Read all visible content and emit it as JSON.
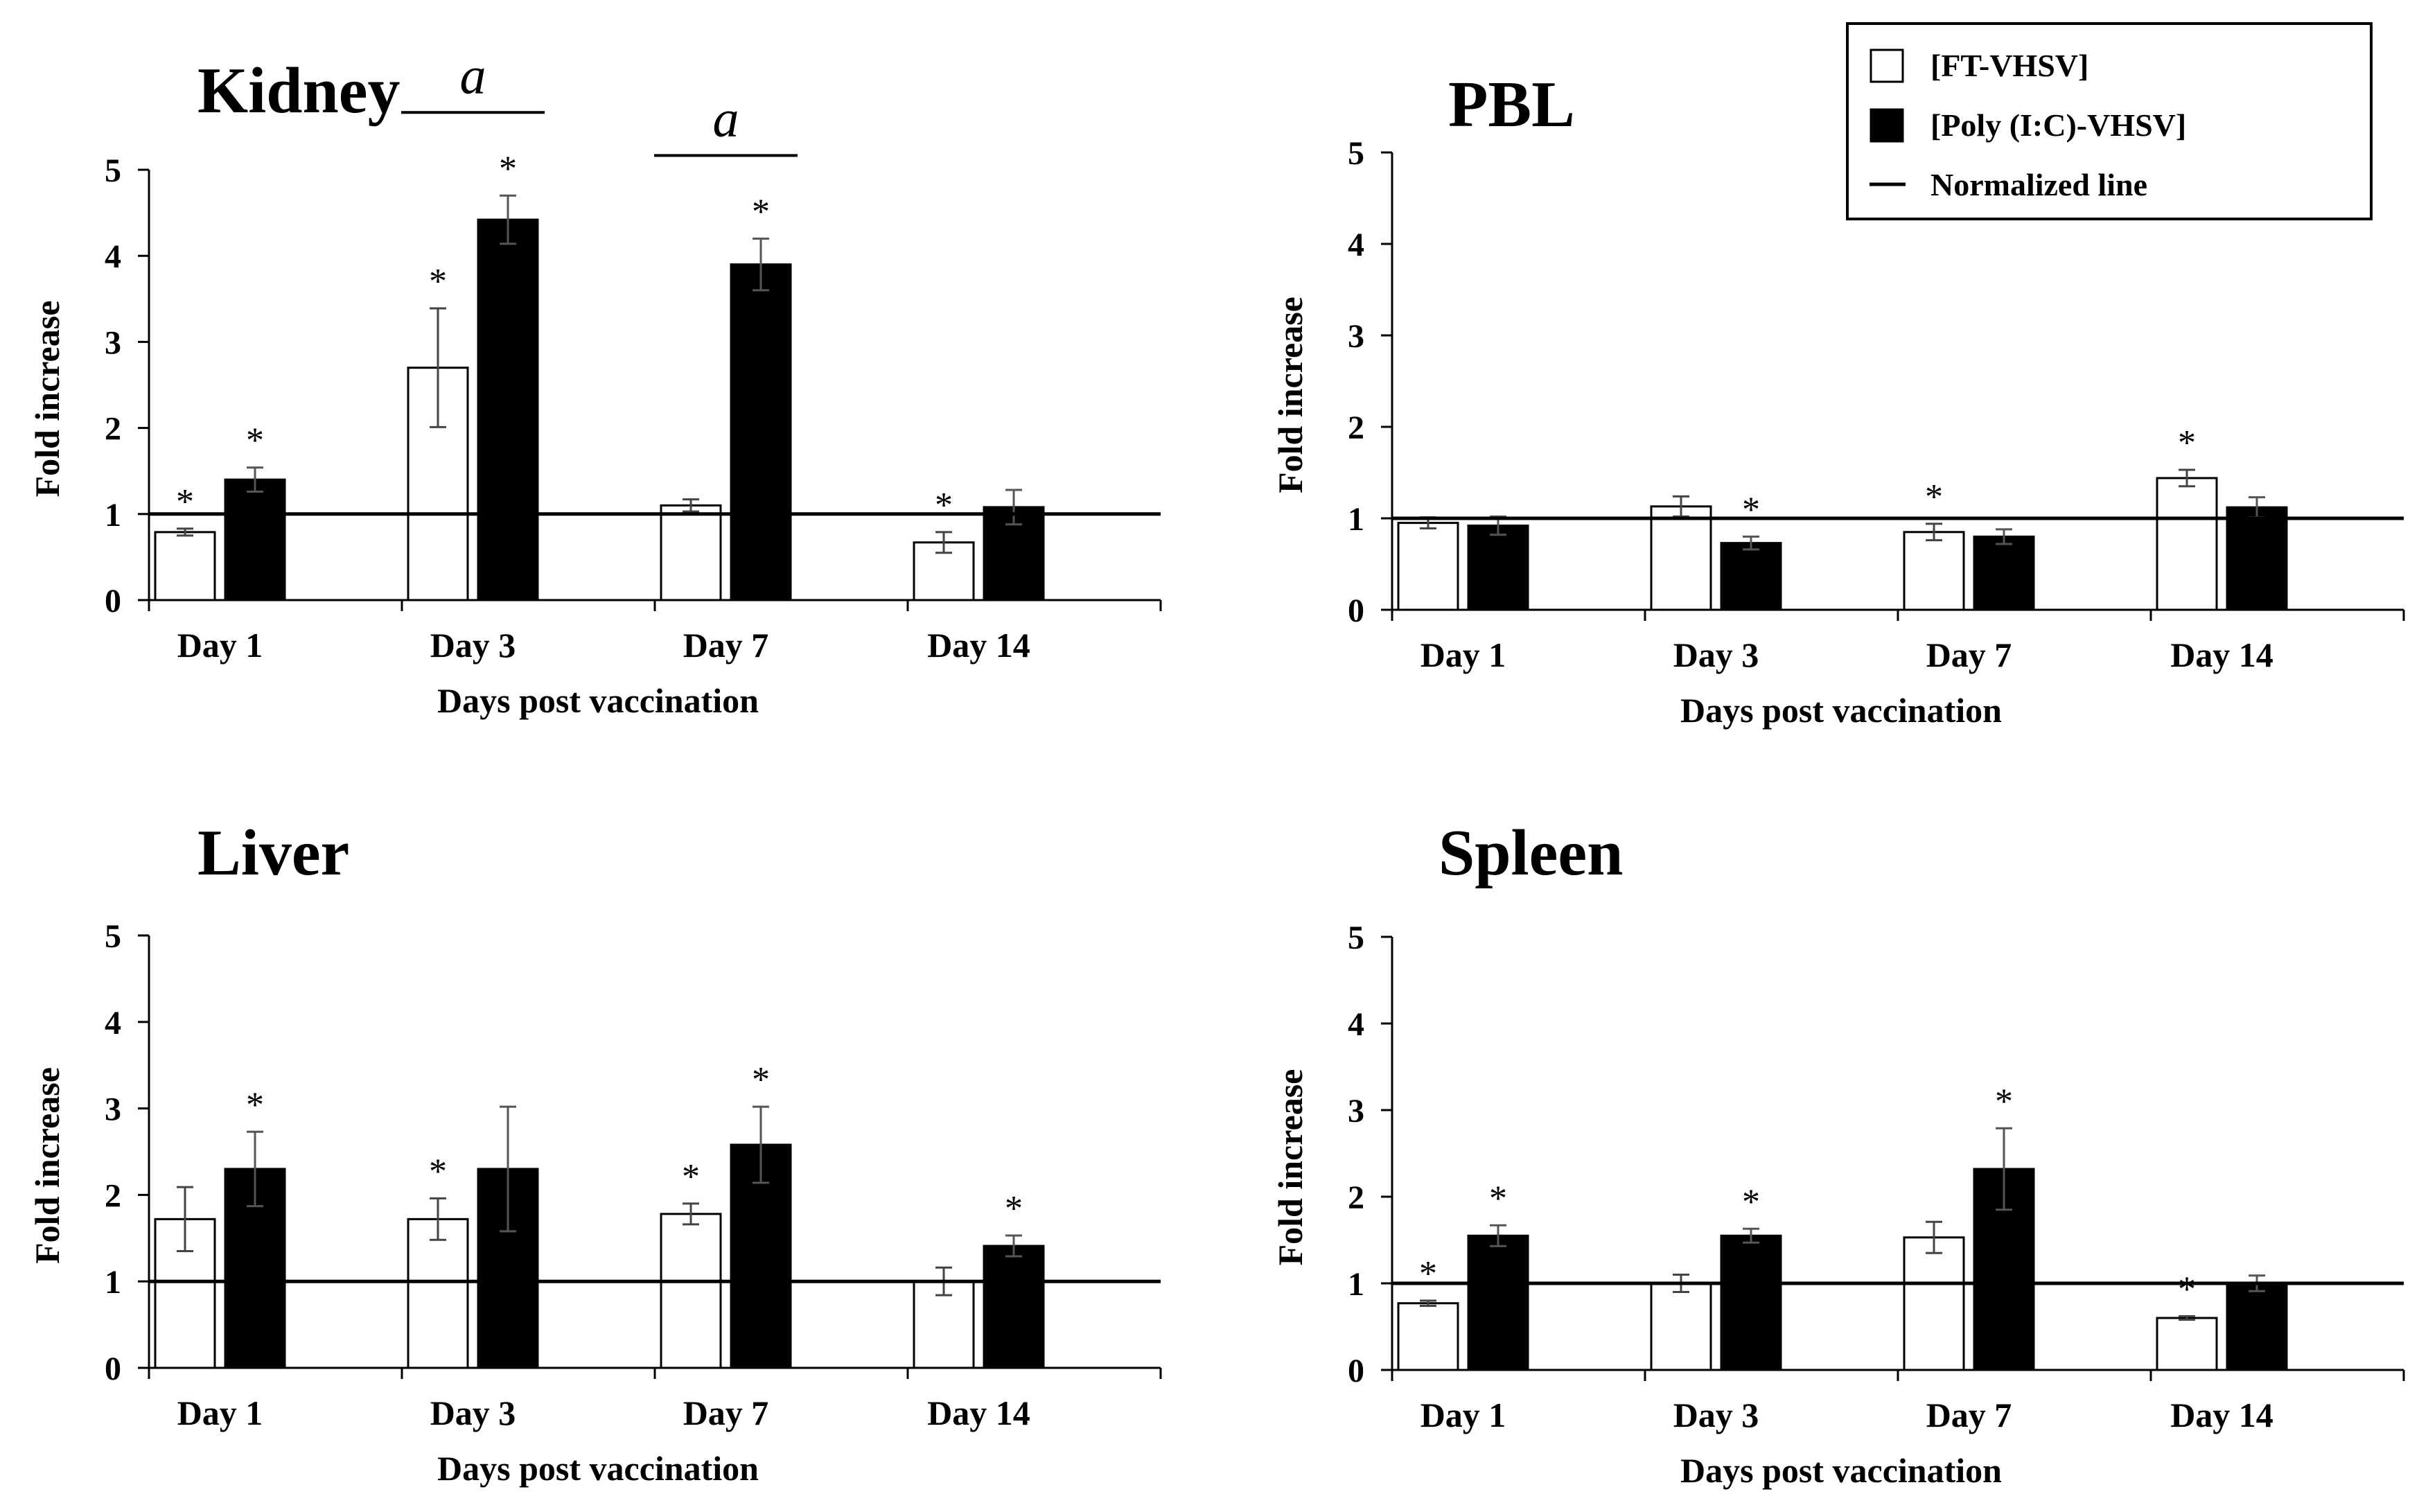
{
  "chart_data": [
    {
      "type": "bar",
      "title": "Kidney",
      "xlabel": "Days post vaccination",
      "ylabel": "Fold increase",
      "ylim": [
        0,
        5
      ],
      "yticks": [
        "0",
        "1",
        "2",
        "3",
        "4",
        "5"
      ],
      "categories": [
        "Day 1",
        "Day 3",
        "Day 7",
        "Day 14"
      ],
      "series": [
        {
          "name": "[FT-VHSV]",
          "values": [
            0.79,
            2.7,
            1.1,
            0.67
          ],
          "errors": [
            0.04,
            0.69,
            0.07,
            0.12
          ],
          "stars": [
            "*",
            "*",
            "",
            "*"
          ]
        },
        {
          "name": "[Poly (I:C)-VHSV]",
          "values": [
            1.4,
            4.42,
            3.9,
            1.08
          ],
          "errors": [
            0.14,
            0.28,
            0.3,
            0.2
          ],
          "stars": [
            "*",
            "*",
            "*",
            ""
          ]
        }
      ],
      "reference_line": 1,
      "significance": [
        {
          "category": "Day 3",
          "label": "a"
        },
        {
          "category": "Day 7",
          "label": "a"
        }
      ]
    },
    {
      "type": "bar",
      "title": "PBL",
      "xlabel": "Days post vaccination",
      "ylabel": "Fold increase",
      "ylim": [
        0,
        5
      ],
      "yticks": [
        "0",
        "1",
        "2",
        "3",
        "4",
        "5"
      ],
      "categories": [
        "Day 1",
        "Day 3",
        "Day 7",
        "Day 14"
      ],
      "series": [
        {
          "name": "[FT-VHSV]",
          "values": [
            0.95,
            1.13,
            0.85,
            1.44
          ],
          "errors": [
            0.06,
            0.11,
            0.09,
            0.09
          ],
          "stars": [
            "",
            "",
            "*",
            "*"
          ]
        },
        {
          "name": "[Poly (I:C)-VHSV]",
          "values": [
            0.92,
            0.73,
            0.8,
            1.12
          ],
          "errors": [
            0.1,
            0.07,
            0.08,
            0.11
          ],
          "stars": [
            "",
            "*",
            "",
            ""
          ]
        }
      ],
      "reference_line": 1,
      "significance": []
    },
    {
      "type": "bar",
      "title": "Liver",
      "xlabel": "Days post vaccination",
      "ylabel": "Fold increase",
      "ylim": [
        0,
        5
      ],
      "yticks": [
        "0",
        "1",
        "2",
        "3",
        "4",
        "5"
      ],
      "categories": [
        "Day 1",
        "Day 3",
        "Day 7",
        "Day 14"
      ],
      "series": [
        {
          "name": "[FT-VHSV]",
          "values": [
            1.72,
            1.72,
            1.78,
            1.0
          ],
          "errors": [
            0.37,
            0.24,
            0.12,
            0.16
          ],
          "stars": [
            "",
            "*",
            "*",
            ""
          ]
        },
        {
          "name": "[Poly (I:C)-VHSV]",
          "values": [
            2.3,
            2.3,
            2.58,
            1.41
          ],
          "errors": [
            0.43,
            0.72,
            0.44,
            0.12
          ],
          "stars": [
            "*",
            "",
            "*",
            "*"
          ]
        }
      ],
      "reference_line": 1,
      "significance": []
    },
    {
      "type": "bar",
      "title": "Spleen",
      "xlabel": "Days post vaccination",
      "ylabel": "Fold increase",
      "ylim": [
        0,
        5
      ],
      "yticks": [
        "0",
        "1",
        "2",
        "3",
        "4",
        "5"
      ],
      "categories": [
        "Day 1",
        "Day 3",
        "Day 7",
        "Day 14"
      ],
      "series": [
        {
          "name": "[FT-VHSV]",
          "values": [
            0.77,
            1.0,
            1.53,
            0.6
          ],
          "errors": [
            0.03,
            0.1,
            0.18,
            0.02
          ],
          "stars": [
            "*",
            "",
            "",
            "*"
          ]
        },
        {
          "name": "[Poly (I:C)-VHSV]",
          "values": [
            1.55,
            1.55,
            2.32,
            1.0
          ],
          "errors": [
            0.12,
            0.08,
            0.47,
            0.09
          ],
          "stars": [
            "*",
            "*",
            "*",
            ""
          ]
        }
      ],
      "reference_line": 1,
      "significance": []
    }
  ],
  "legend": {
    "items": [
      {
        "label": "[FT-VHSV]",
        "kind": "open-bar"
      },
      {
        "label": "[Poly (I:C)-VHSV]",
        "kind": "filled-bar"
      },
      {
        "label": "Normalized line",
        "kind": "line"
      }
    ]
  },
  "colors": {
    "open_fill": "#ffffff",
    "filled_fill": "#000000",
    "stroke": "#000000",
    "error": "#444444"
  }
}
